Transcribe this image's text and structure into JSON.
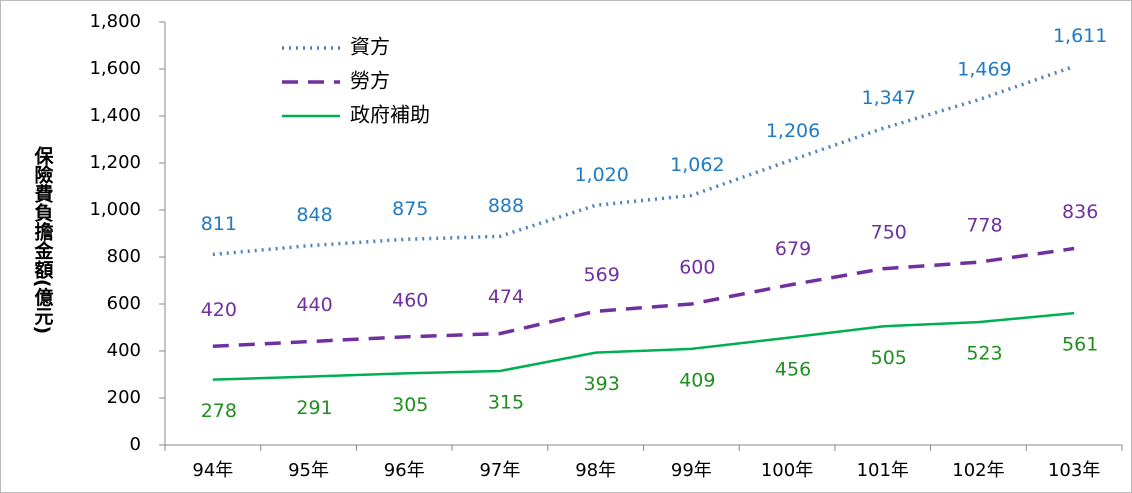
{
  "chart_data": {
    "type": "line",
    "y_label": "保險費負擔金額(億元)",
    "categories": [
      "94年",
      "95年",
      "96年",
      "97年",
      "98年",
      "99年",
      "100年",
      "101年",
      "102年",
      "103年"
    ],
    "series": [
      {
        "name": "資方",
        "color": "#4f81bd",
        "label_color": "#1f7bc4",
        "dash": "dotted",
        "values": [
          811,
          848,
          875,
          888,
          1020,
          1062,
          1206,
          1347,
          1469,
          1611
        ],
        "value_labels": [
          "811",
          "848",
          "875",
          "888",
          "1,020",
          "1,062",
          "1,206",
          "1,347",
          "1,469",
          "1,611"
        ]
      },
      {
        "name": "勞方",
        "color": "#7030a0",
        "label_color": "#7030a0",
        "dash": "dashed",
        "values": [
          420,
          440,
          460,
          474,
          569,
          600,
          679,
          750,
          778,
          836
        ]
      },
      {
        "name": "政府補助",
        "color": "#00b050",
        "label_color": "#1f8f1f",
        "dash": "solid",
        "values": [
          278,
          291,
          305,
          315,
          393,
          409,
          456,
          505,
          523,
          561
        ]
      }
    ],
    "ylim": [
      0,
      1800
    ],
    "yticks": [
      0,
      200,
      400,
      600,
      800,
      {
        "value": 1000,
        "label": "1,000"
      },
      {
        "value": 1200,
        "label": "1,200"
      },
      {
        "value": 1400,
        "label": "1,400"
      },
      {
        "value": 1600,
        "label": "1,600"
      },
      {
        "value": 1800,
        "label": "1,800"
      }
    ],
    "grid": false,
    "legend": "top-left"
  }
}
